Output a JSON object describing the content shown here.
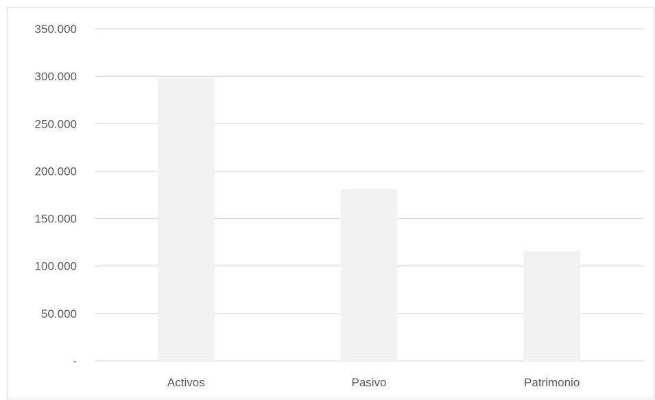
{
  "chart_data": {
    "type": "bar",
    "title": "",
    "xlabel": "",
    "ylabel": "",
    "categories": [
      "Activos",
      "Pasivo",
      "Patrimonio"
    ],
    "values": [
      298000,
      181000,
      116000
    ],
    "ylim": [
      0,
      350000
    ],
    "yticks": [
      0,
      50000,
      100000,
      150000,
      200000,
      250000,
      300000,
      350000
    ],
    "ytick_labels": [
      "-",
      "50.000",
      "100.000",
      "150.000",
      "200.000",
      "250.000",
      "300.000",
      "350.000"
    ],
    "grid": true,
    "legend": "none",
    "colors": {
      "bar": "#f2f2f2",
      "grid": "#d9d9d9",
      "axis": "#d9d9d9",
      "text": "#595959"
    }
  }
}
